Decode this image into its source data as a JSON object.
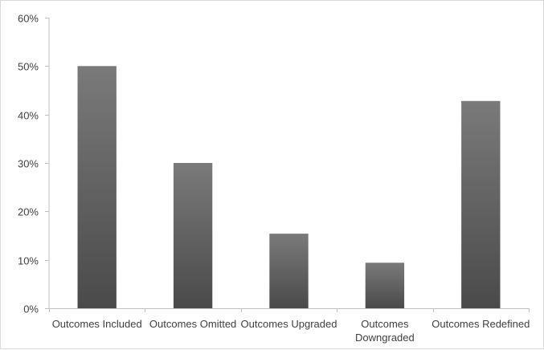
{
  "chart_data": {
    "type": "bar",
    "categories": [
      [
        "Outcomes Included"
      ],
      [
        "Outcomes Omitted"
      ],
      [
        "Outcomes Upgraded"
      ],
      [
        "Outcomes",
        "Downgraded"
      ],
      [
        "Outcomes Redefined"
      ]
    ],
    "values": [
      50,
      30,
      15.4,
      9.4,
      42.8
    ],
    "y_ticks": [
      "0%",
      "10%",
      "20%",
      "30%",
      "40%",
      "50%",
      "60%"
    ],
    "ylim": [
      0,
      60
    ],
    "grid": false,
    "legend": "none",
    "title": "",
    "xlabel": "",
    "ylabel": ""
  },
  "colors": {
    "bar_top": "#7a7a7a",
    "bar_bottom": "#4a4a4a",
    "axis": "#bfbfbf",
    "text": "#404040"
  }
}
